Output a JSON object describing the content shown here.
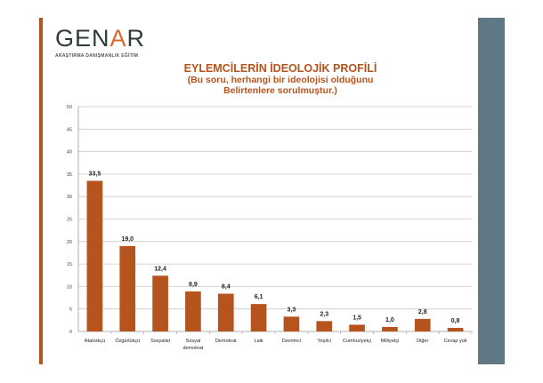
{
  "logo": {
    "word_start": "GEN",
    "word_mid": "A",
    "word_end": "R",
    "tagline": "ARAŞTIRMA DANIŞMANLIK EĞİTİM"
  },
  "chart_data": {
    "type": "bar",
    "title": "EYLEMCİLERİN İDEOLOJİK PROFİLİ",
    "subtitle_line1": "(Bu soru, herhangi bir ideolojisi olduğunu",
    "subtitle_line2": "Belirtenlere sorulmuştur.)",
    "categories": [
      "Atatürkçü",
      "Özgürlükçü",
      "Sosyalist",
      "Sosyal demokrat",
      "Demokrat",
      "Laik",
      "Devrimci",
      "Yeşilci",
      "Cumhuriyetçi",
      "Milliyetçi",
      "Diğer",
      "Cevap yok"
    ],
    "values": [
      33.5,
      19.0,
      12.4,
      8.9,
      8.4,
      6.1,
      3.3,
      2.3,
      1.5,
      1.0,
      2.8,
      0.8
    ],
    "value_labels": [
      "33,5",
      "19,0",
      "12,4",
      "8,9",
      "8,4",
      "6,1",
      "3,3",
      "2,3",
      "1,5",
      "1,0",
      "2,8",
      "0,8"
    ],
    "yticks": [
      0,
      5,
      10,
      15,
      20,
      25,
      30,
      35,
      40,
      45,
      50
    ],
    "ylim": [
      0,
      50
    ],
    "grid": true,
    "bar_color": "#b5541c",
    "xlabel": "",
    "ylabel": ""
  }
}
